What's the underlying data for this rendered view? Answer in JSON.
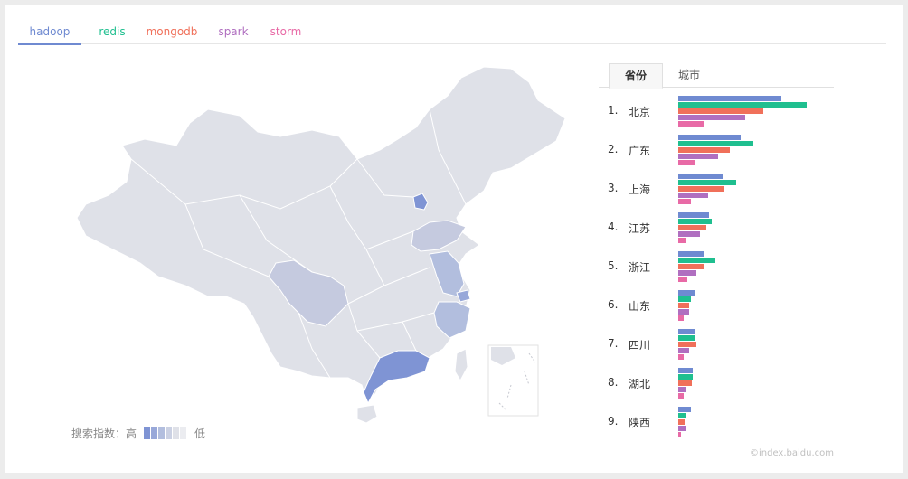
{
  "tabs": [
    {
      "label": "hadoop",
      "color": "#6f8ad1",
      "active": true
    },
    {
      "label": "redis",
      "color": "#1fbf8f",
      "active": false
    },
    {
      "label": "mongodb",
      "color": "#f0705a",
      "active": false
    },
    {
      "label": "spark",
      "color": "#b06fc0",
      "active": false
    },
    {
      "label": "storm",
      "color": "#e86aa6",
      "active": false
    }
  ],
  "map": {
    "base_color": "#dfe1e8",
    "legend_high": "搜索指数：高",
    "legend_low": "低",
    "legend_colors": [
      "#7f94d4",
      "#98a8d9",
      "#b2bede",
      "#cbd1e3",
      "#dfe1e8",
      "#ebecf0"
    ]
  },
  "ranking": {
    "tab_province": "省份",
    "tab_city": "城市",
    "credit": "©index.baidu.com"
  },
  "chart_data": {
    "type": "bar",
    "categories": [
      "北京",
      "广东",
      "上海",
      "江苏",
      "浙江",
      "山东",
      "四川",
      "湖北",
      "陕西"
    ],
    "ranks": [
      "1.",
      "2.",
      "3.",
      "4.",
      "5.",
      "6.",
      "7.",
      "8.",
      "9."
    ],
    "series": [
      {
        "name": "hadoop",
        "color": "#6f8ad1",
        "values": [
          100,
          61,
          43,
          30,
          25,
          17,
          16,
          14,
          12
        ]
      },
      {
        "name": "redis",
        "color": "#1fbf8f",
        "values": [
          125,
          73,
          56,
          33,
          36,
          12,
          17,
          14,
          7
        ]
      },
      {
        "name": "mongodb",
        "color": "#f0705a",
        "values": [
          83,
          50,
          45,
          27,
          25,
          11,
          18,
          13,
          6
        ]
      },
      {
        "name": "spark",
        "color": "#b06fc0",
        "values": [
          65,
          39,
          29,
          21,
          18,
          11,
          11,
          8,
          8
        ]
      },
      {
        "name": "storm",
        "color": "#e86aa6",
        "values": [
          25,
          16,
          12,
          8,
          9,
          5,
          5,
          5,
          3
        ]
      }
    ],
    "highlighted_regions": [
      {
        "name": "北京",
        "level": 2
      },
      {
        "name": "广东",
        "level": 1
      },
      {
        "name": "江苏",
        "level": 3
      },
      {
        "name": "浙江",
        "level": 3
      },
      {
        "name": "上海",
        "level": 3
      },
      {
        "name": "四川",
        "level": 4
      },
      {
        "name": "山东",
        "level": 4
      }
    ]
  }
}
